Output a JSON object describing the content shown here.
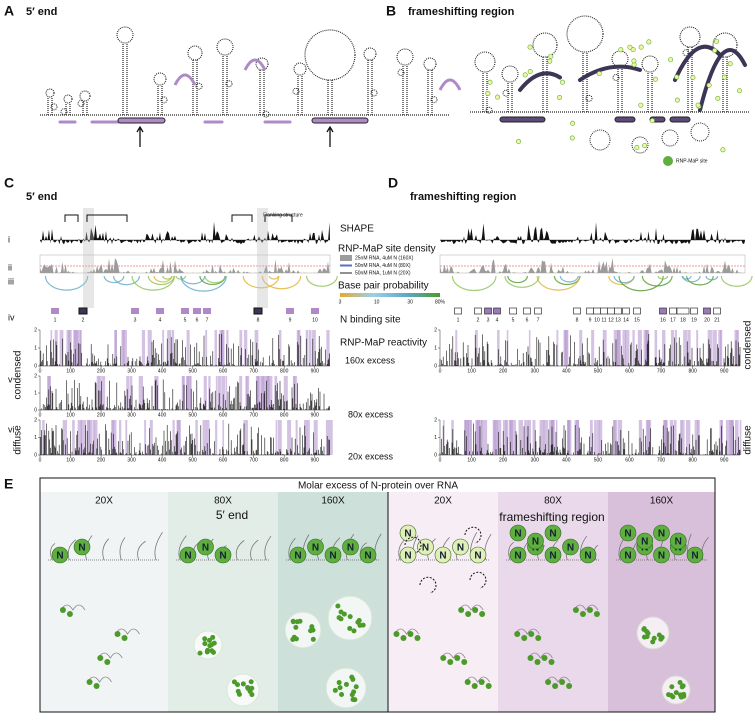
{
  "panel_a": {
    "label": "A",
    "title": "5′ end"
  },
  "panel_b": {
    "label": "B",
    "title": "frameshifting region",
    "legend": "RNP-MaP site"
  },
  "panel_c": {
    "label": "C",
    "title": "5′ end",
    "flanking": "Flanking structure",
    "tracks": {
      "shape": "SHAPE",
      "density": "RNP-MaP site density",
      "bpp": "Base pair probability",
      "binding": "N binding site",
      "reactivity": "RNP-MaP reactivity"
    },
    "legend": [
      "25nM RNA, 4uM N (160X)",
      "50nM RNA, 4uM N (80X)",
      "50nM RNA, 1uM N (20X)"
    ],
    "bpp_ticks": [
      3,
      10,
      30,
      {
        "value": 80,
        "label": "80%"
      }
    ],
    "rows": [
      "i",
      "ii",
      "iii",
      "iv",
      "v",
      "vi"
    ],
    "excess": [
      "160x excess",
      "80x excess",
      "20x excess"
    ],
    "sites": [
      1,
      2,
      3,
      4,
      5,
      6,
      7,
      8,
      9,
      10
    ],
    "xlim": [
      0,
      950
    ],
    "xticks": [
      0,
      100,
      200,
      300,
      400,
      500,
      600,
      700,
      800,
      900
    ],
    "yticks": [
      0,
      1,
      2
    ],
    "side": [
      "condensed",
      "diffuse"
    ]
  },
  "panel_d": {
    "label": "D",
    "title": "frameshifting region",
    "sites": [
      1,
      2,
      3,
      4,
      5,
      6,
      7,
      8,
      9,
      10,
      11,
      12,
      13,
      14,
      15,
      16,
      17,
      18,
      19,
      20,
      21
    ],
    "xlim": [
      0,
      950
    ],
    "xticks": [
      0,
      100,
      200,
      300,
      400,
      500,
      600,
      700,
      800,
      900
    ],
    "yticks": [
      0,
      1,
      2
    ],
    "side": [
      "condensed",
      "diffuse"
    ]
  },
  "panel_e": {
    "label": "E",
    "header": "Molar excess of N-protein over RNA",
    "columns": [
      "20X",
      "80X",
      "160X",
      "20X",
      "80X",
      "160X"
    ],
    "groups": [
      "5′ end",
      "frameshifting region"
    ],
    "glyph": "N"
  }
}
